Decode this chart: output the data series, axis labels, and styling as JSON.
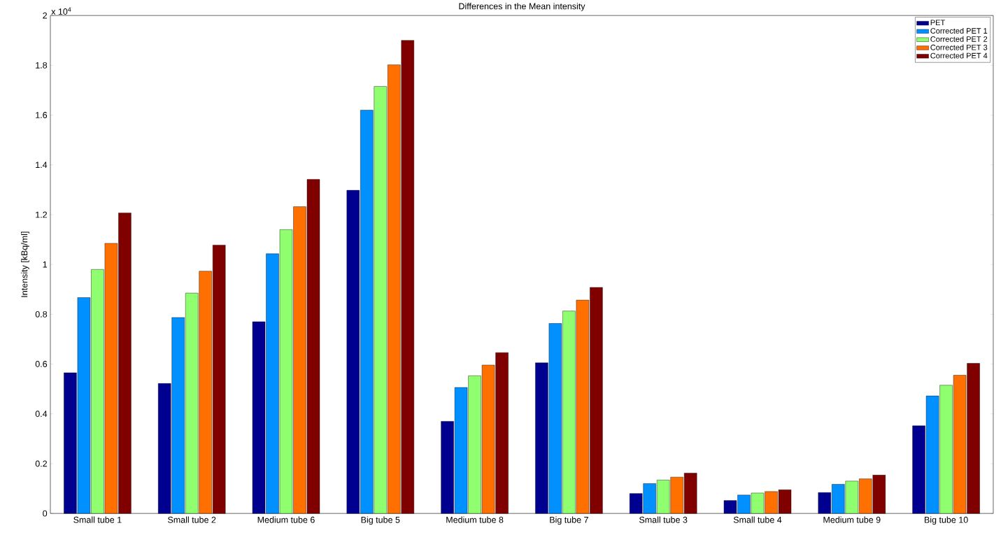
{
  "chart_data": {
    "type": "bar",
    "title": "Differences in the Mean intensity",
    "ylabel": "Intensity [kBq/ml]",
    "annotations": [
      "x 10$^{4}$"
    ],
    "categories": [
      "Small tube 1",
      "Small tube 2",
      "Medium tube 6",
      "Big tube 5",
      "Medium tube 8",
      "Big tube 7",
      "Small tube 3",
      "Small tube 4",
      "Medium tube 9",
      "Big tube 10"
    ],
    "series": [
      {
        "name": "PET",
        "color": "#000090",
        "values": [
          0.565,
          0.522,
          0.77,
          1.298,
          0.37,
          0.605,
          0.08,
          0.052,
          0.084,
          0.352
        ]
      },
      {
        "name": "Corrected PET 1",
        "color": "#0090ff",
        "values": [
          0.867,
          0.787,
          1.043,
          1.62,
          0.506,
          0.763,
          0.12,
          0.074,
          0.117,
          0.472
        ]
      },
      {
        "name": "Corrected PET 2",
        "color": "#8fff70",
        "values": [
          0.98,
          0.885,
          1.14,
          1.715,
          0.553,
          0.813,
          0.134,
          0.082,
          0.13,
          0.515
        ]
      },
      {
        "name": "Corrected PET 3",
        "color": "#ff7000",
        "values": [
          1.085,
          0.973,
          1.232,
          1.802,
          0.596,
          0.857,
          0.146,
          0.088,
          0.139,
          0.555
        ]
      },
      {
        "name": "Corrected PET 4",
        "color": "#800000",
        "values": [
          1.207,
          1.078,
          1.342,
          1.9,
          0.646,
          0.908,
          0.162,
          0.095,
          0.154,
          0.603
        ]
      }
    ],
    "ylim": [
      0,
      2
    ],
    "yticks": [
      0,
      0.2,
      0.4,
      0.6,
      0.8,
      1,
      1.2,
      1.4,
      1.6,
      1.8,
      2
    ],
    "grid": false,
    "legend": "top right"
  }
}
